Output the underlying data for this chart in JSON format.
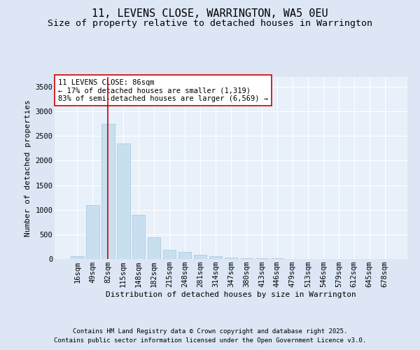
{
  "title1": "11, LEVENS CLOSE, WARRINGTON, WA5 0EU",
  "title2": "Size of property relative to detached houses in Warrington",
  "xlabel": "Distribution of detached houses by size in Warrington",
  "ylabel": "Number of detached properties",
  "categories": [
    "16sqm",
    "49sqm",
    "82sqm",
    "115sqm",
    "148sqm",
    "182sqm",
    "215sqm",
    "248sqm",
    "281sqm",
    "314sqm",
    "347sqm",
    "380sqm",
    "413sqm",
    "446sqm",
    "479sqm",
    "513sqm",
    "546sqm",
    "579sqm",
    "612sqm",
    "645sqm",
    "678sqm"
  ],
  "values": [
    60,
    1100,
    2750,
    2350,
    900,
    440,
    185,
    140,
    90,
    50,
    30,
    20,
    15,
    10,
    5,
    5,
    3,
    3,
    2,
    2,
    1
  ],
  "bar_color": "#c8dff0",
  "bar_edge_color": "#a8c4dc",
  "vline_x_index": 2.0,
  "vline_color": "#cc0000",
  "annotation_text": "11 LEVENS CLOSE: 86sqm\n← 17% of detached houses are smaller (1,319)\n83% of semi-detached houses are larger (6,569) →",
  "annotation_box_color": "#ffffff",
  "annotation_box_edge": "#cc0000",
  "ylim": [
    0,
    3700
  ],
  "yticks": [
    0,
    500,
    1000,
    1500,
    2000,
    2500,
    3000,
    3500
  ],
  "bg_color": "#dce6f5",
  "plot_bg_color": "#e8f0fa",
  "grid_color": "#ffffff",
  "footer1": "Contains HM Land Registry data © Crown copyright and database right 2025.",
  "footer2": "Contains public sector information licensed under the Open Government Licence v3.0.",
  "title_fontsize": 11,
  "subtitle_fontsize": 9.5,
  "axis_label_fontsize": 8,
  "tick_fontsize": 7.5,
  "annotation_fontsize": 7.5,
  "footer_fontsize": 6.5
}
